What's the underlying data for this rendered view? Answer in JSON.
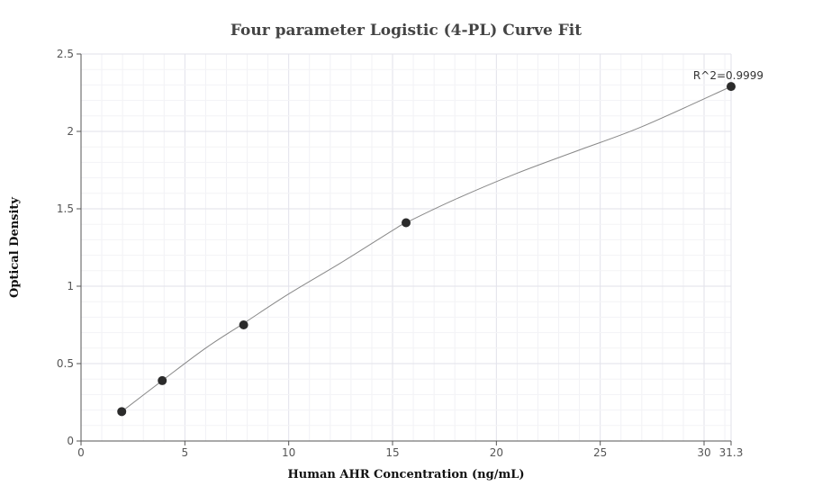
{
  "chart_data": {
    "type": "scatter",
    "title": "Four parameter Logistic (4-PL) Curve Fit",
    "xlabel": "Human AHR Concentration (ng/mL)",
    "ylabel": "Optical Density",
    "xlim": [
      0,
      31.3
    ],
    "ylim": [
      0,
      2.5
    ],
    "x_ticks": [
      0,
      5,
      10,
      15,
      20,
      25,
      30,
      31.3
    ],
    "y_ticks": [
      0,
      0.5,
      1,
      1.5,
      2,
      2.5
    ],
    "grid": true,
    "points": [
      {
        "x": 1.96,
        "y": 0.19
      },
      {
        "x": 3.91,
        "y": 0.39
      },
      {
        "x": 7.83,
        "y": 0.75
      },
      {
        "x": 15.65,
        "y": 1.41
      },
      {
        "x": 31.3,
        "y": 2.29
      }
    ],
    "fit_curve": [
      {
        "x": 1.96,
        "y": 0.19
      },
      {
        "x": 3.91,
        "y": 0.39
      },
      {
        "x": 6.0,
        "y": 0.6
      },
      {
        "x": 7.83,
        "y": 0.76
      },
      {
        "x": 10.0,
        "y": 0.95
      },
      {
        "x": 12.5,
        "y": 1.15
      },
      {
        "x": 15.0,
        "y": 1.36
      },
      {
        "x": 15.65,
        "y": 1.41
      },
      {
        "x": 18.0,
        "y": 1.56
      },
      {
        "x": 21.0,
        "y": 1.73
      },
      {
        "x": 24.0,
        "y": 1.88
      },
      {
        "x": 27.0,
        "y": 2.03
      },
      {
        "x": 31.3,
        "y": 2.29
      }
    ],
    "annotation": "R^2=0.9999",
    "colors": {
      "point": "#2b2b2b",
      "curve": "#888888",
      "grid": "#e8e8ef",
      "axis": "#555555"
    }
  }
}
